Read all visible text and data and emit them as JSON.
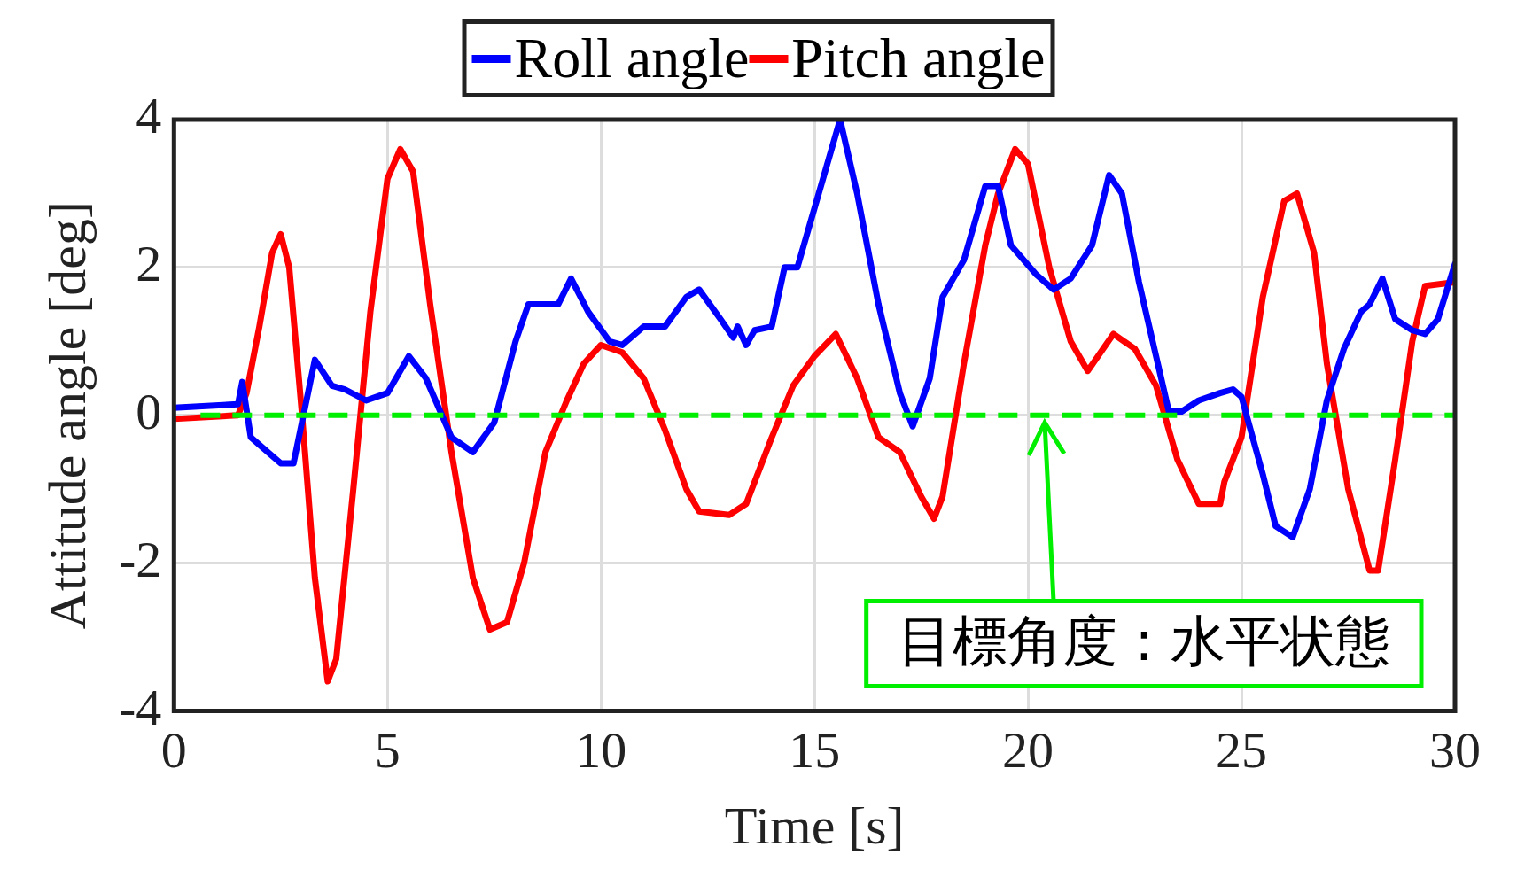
{
  "chart_data": {
    "type": "line",
    "xlabel": "Time [s]",
    "ylabel": "Attitude angle [deg]",
    "xlim": [
      0,
      30
    ],
    "xticks": [
      0,
      5,
      10,
      15,
      20,
      25,
      30
    ],
    "ylim": [
      -4,
      4
    ],
    "yticks": [
      -4,
      -2,
      0,
      2,
      4
    ],
    "grid": true,
    "legend": "top",
    "marker": "none",
    "line_style": "solid",
    "series": [
      {
        "name": "Roll angle",
        "color": "#0000ff",
        "x": [
          0,
          1.5,
          1.6,
          1.8,
          2.5,
          2.8,
          3.3,
          3.7,
          4.0,
          4.5,
          5.0,
          5.5,
          5.9,
          6.5,
          7.0,
          7.5,
          8.0,
          8.3,
          9.0,
          9.3,
          9.7,
          10.2,
          10.5,
          11.0,
          11.5,
          12.0,
          12.3,
          12.8,
          13.1,
          13.2,
          13.4,
          13.6,
          14.0,
          14.3,
          14.6,
          15.2,
          15.6,
          16.0,
          16.5,
          17.0,
          17.3,
          17.7,
          18.0,
          18.5,
          19.0,
          19.3,
          19.6,
          20.2,
          20.6,
          21.0,
          21.5,
          21.9,
          22.2,
          22.6,
          23.0,
          23.3,
          23.6,
          24.0,
          24.5,
          24.8,
          25.0,
          25.5,
          25.8,
          26.2,
          26.6,
          27.0,
          27.4,
          27.8,
          28.0,
          28.3,
          28.6,
          29.0,
          29.3,
          29.6,
          30
        ],
        "values": [
          0.1,
          0.15,
          0.45,
          -0.3,
          -0.65,
          -0.65,
          0.75,
          0.4,
          0.35,
          0.2,
          0.3,
          0.8,
          0.5,
          -0.3,
          -0.5,
          -0.1,
          1.0,
          1.5,
          1.5,
          1.85,
          1.4,
          1.0,
          0.95,
          1.2,
          1.2,
          1.6,
          1.7,
          1.3,
          1.05,
          1.2,
          0.95,
          1.15,
          1.2,
          2.0,
          2.0,
          3.2,
          4.0,
          3.0,
          1.5,
          0.3,
          -0.15,
          0.5,
          1.6,
          2.1,
          3.1,
          3.1,
          2.3,
          1.9,
          1.7,
          1.85,
          2.3,
          3.25,
          3.0,
          1.8,
          0.8,
          0.05,
          0.05,
          0.2,
          0.3,
          0.35,
          0.25,
          -0.8,
          -1.5,
          -1.65,
          -1.0,
          0.2,
          0.9,
          1.4,
          1.5,
          1.85,
          1.3,
          1.15,
          1.1,
          1.3,
          2.05
        ]
      },
      {
        "name": "Pitch angle",
        "color": "#ff0000",
        "x": [
          0,
          1.5,
          1.7,
          2.0,
          2.3,
          2.5,
          2.7,
          3.0,
          3.3,
          3.6,
          3.8,
          4.2,
          4.6,
          5.0,
          5.3,
          5.6,
          6.0,
          6.5,
          7.0,
          7.4,
          7.8,
          8.2,
          8.7,
          9.2,
          9.6,
          10.0,
          10.5,
          11.0,
          11.5,
          12.0,
          12.3,
          13.0,
          13.4,
          14.0,
          14.5,
          15.0,
          15.5,
          16.0,
          16.5,
          17.0,
          17.5,
          17.8,
          18.0,
          18.5,
          19.0,
          19.3,
          19.7,
          20.0,
          20.5,
          21.0,
          21.4,
          22.0,
          22.5,
          23.0,
          23.5,
          24.0,
          24.5,
          24.6,
          25.0,
          25.5,
          26.0,
          26.3,
          26.7,
          27.0,
          27.5,
          28.0,
          28.2,
          28.6,
          29.0,
          29.3,
          30
        ],
        "values": [
          -0.05,
          0,
          0.3,
          1.2,
          2.2,
          2.45,
          2.0,
          0.0,
          -2.2,
          -3.6,
          -3.3,
          -1.0,
          1.4,
          3.2,
          3.6,
          3.3,
          1.5,
          -0.5,
          -2.2,
          -2.9,
          -2.8,
          -2.0,
          -0.5,
          0.2,
          0.7,
          0.95,
          0.85,
          0.5,
          -0.2,
          -1.0,
          -1.3,
          -1.35,
          -1.2,
          -0.3,
          0.4,
          0.8,
          1.1,
          0.5,
          -0.3,
          -0.5,
          -1.1,
          -1.4,
          -1.1,
          0.7,
          2.3,
          3.0,
          3.6,
          3.4,
          2.0,
          1.0,
          0.6,
          1.1,
          0.9,
          0.4,
          -0.6,
          -1.2,
          -1.2,
          -0.9,
          -0.3,
          1.6,
          2.9,
          3.0,
          2.2,
          0.7,
          -1.0,
          -2.1,
          -2.1,
          -0.6,
          1.0,
          1.75,
          1.8
        ]
      }
    ],
    "ref_lines": [
      {
        "axis": "y",
        "value": 0,
        "color": "#00ee00",
        "line_style": "dashed"
      }
    ],
    "annotations": [
      "目標角度 : 水平状態"
    ]
  }
}
